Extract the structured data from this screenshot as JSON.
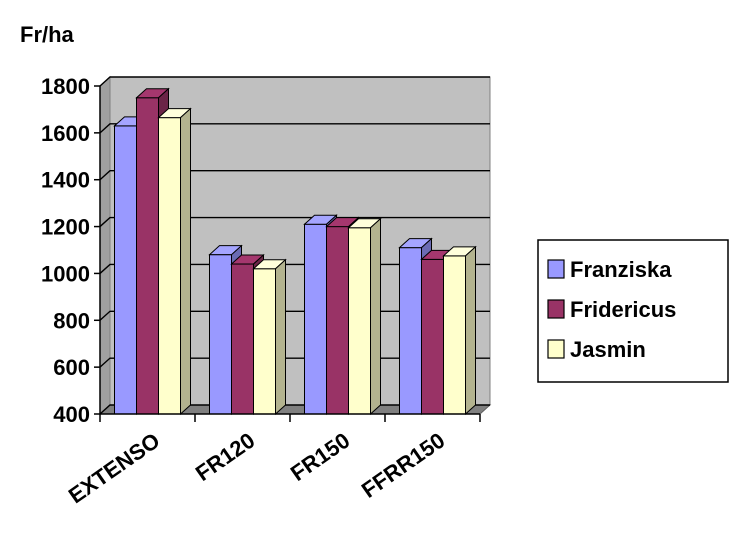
{
  "chart_data": {
    "type": "bar",
    "ylabel": "Fr/ha",
    "categories": [
      "EXTENSO",
      "FR120",
      "FR150",
      "FFRR150"
    ],
    "series": [
      {
        "name": "Franziska",
        "values": [
          1630,
          1080,
          1210,
          1110
        ],
        "color": "#9999ff"
      },
      {
        "name": "Fridericus",
        "values": [
          1750,
          1040,
          1200,
          1060
        ],
        "color": "#993366"
      },
      {
        "name": "Jasmin",
        "values": [
          1665,
          1020,
          1195,
          1075
        ],
        "color": "#ffffcc"
      }
    ],
    "ylim": [
      400,
      1800
    ],
    "yticks": [
      400,
      600,
      800,
      1000,
      1200,
      1400,
      1600,
      1800
    ],
    "grid": true,
    "legend": "right",
    "style": "3d-clustered-column",
    "wall_color": "#c0c0c0"
  }
}
